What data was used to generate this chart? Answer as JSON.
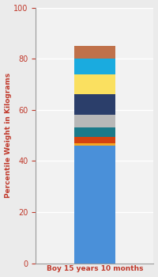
{
  "category": "Boy 15 years 10 months",
  "segments": [
    {
      "value": 46,
      "color": "#4A90D9"
    },
    {
      "value": 1.0,
      "color": "#F5A623"
    },
    {
      "value": 2.5,
      "color": "#D44210"
    },
    {
      "value": 3.5,
      "color": "#1B7A8A"
    },
    {
      "value": 5,
      "color": "#B8B8B8"
    },
    {
      "value": 8,
      "color": "#2B3E6A"
    },
    {
      "value": 8,
      "color": "#FAE060"
    },
    {
      "value": 6,
      "color": "#1AABDF"
    },
    {
      "value": 5,
      "color": "#C0714A"
    }
  ],
  "ylim": [
    0,
    100
  ],
  "yticks": [
    0,
    20,
    40,
    60,
    80,
    100
  ],
  "ylabel": "Percentile Weight in Kilograms",
  "label_color": "#C0392B",
  "background_color": "#EBEBEB",
  "axes_bg_color": "#F2F2F2",
  "grid_color": "#FFFFFF",
  "label_fontsize": 6.5,
  "tick_fontsize": 7,
  "bar_width": 0.35
}
